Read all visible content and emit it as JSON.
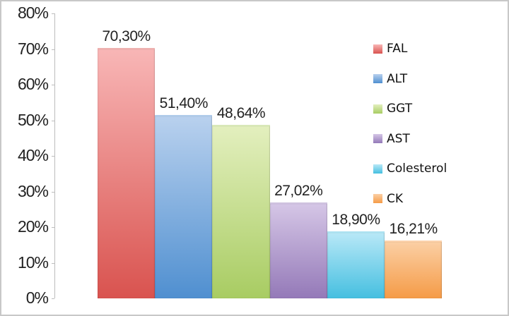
{
  "chart_data": {
    "type": "bar",
    "title": "",
    "xlabel": "",
    "ylabel": "",
    "categories": [
      "FAL",
      "ALT",
      "GGT",
      "AST",
      "Colesterol",
      "CK"
    ],
    "values": [
      70.3,
      51.4,
      48.64,
      27.02,
      18.9,
      16.21
    ],
    "value_labels": [
      "70,30%",
      "51,40%",
      "48,64%",
      "27,02%",
      "18,90%",
      "16,21%"
    ],
    "colors": [
      "#d9534f",
      "#4f8fd0",
      "#a8cc62",
      "#9479b8",
      "#45bfe0",
      "#f59b47"
    ],
    "colors_light": [
      "#f8b6b6",
      "#b9d1ee",
      "#e3efbe",
      "#d5c6e6",
      "#b8e8f7",
      "#fbcfa4"
    ],
    "ylim": [
      0,
      80
    ],
    "yticks": [
      "0%",
      "10%",
      "20%",
      "30%",
      "40%",
      "50%",
      "60%",
      "70%",
      "80%"
    ],
    "grid": false,
    "legend_position": "right"
  },
  "legend": {
    "items": [
      {
        "label": "FAL"
      },
      {
        "label": "ALT"
      },
      {
        "label": "GGT"
      },
      {
        "label": "AST"
      },
      {
        "label": "Colesterol"
      },
      {
        "label": "CK"
      }
    ]
  }
}
